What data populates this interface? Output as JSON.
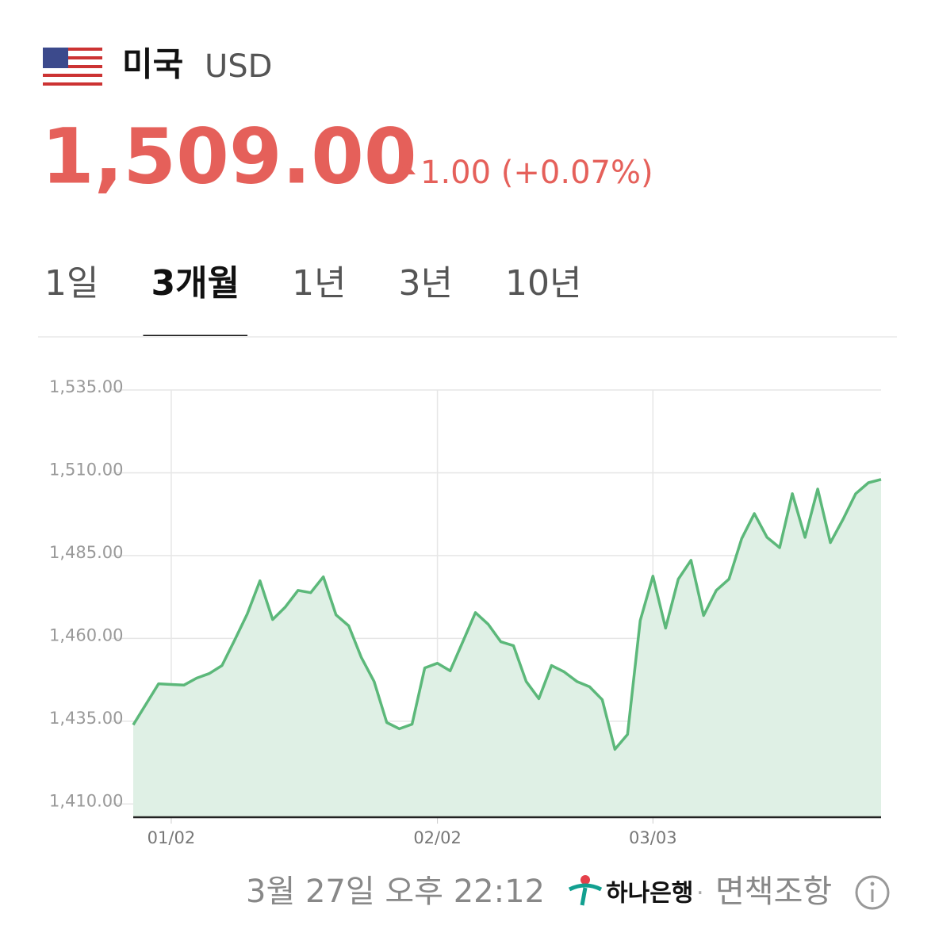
{
  "header": {
    "country": "미국",
    "currency": "USD"
  },
  "price": {
    "value": "1,509.00",
    "change": "1.00 (+0.07%)"
  },
  "tabs": [
    "1일",
    "3개월",
    "1년",
    "3년",
    "10년"
  ],
  "selected_tab": 1,
  "chart_data": {
    "type": "line",
    "color": "#5cb87a",
    "fill": "#dff0e5",
    "categories": [
      null,
      null,
      null,
      "01/02",
      null,
      null,
      null,
      null,
      null,
      null,
      null,
      null,
      null,
      null,
      null,
      null,
      null,
      null,
      null,
      null,
      null,
      null,
      null,
      null,
      "02/02",
      null,
      null,
      null,
      null,
      null,
      null,
      null,
      null,
      null,
      null,
      null,
      null,
      null,
      null,
      null,
      null,
      "03/03",
      null,
      null,
      null,
      null,
      null,
      null,
      null,
      null,
      null,
      null,
      null,
      null,
      null,
      null,
      null,
      null,
      null,
      null
    ],
    "values": [
      1433.9,
      1440.1,
      1446.3,
      1446.1,
      1445.9,
      1448.0,
      1449.4,
      1451.8,
      1459.5,
      1467.4,
      1477.4,
      1465.7,
      1469.5,
      1474.5,
      1473.8,
      1478.6,
      1467.1,
      1463.8,
      1454.2,
      1447.0,
      1434.6,
      1432.7,
      1434.1,
      1451.1,
      1452.5,
      1450.2,
      1459.0,
      1467.8,
      1464.3,
      1459.0,
      1457.8,
      1447.0,
      1441.8,
      1451.8,
      1449.9,
      1447.0,
      1445.4,
      1441.5,
      1426.5,
      1431.0,
      1465.4,
      1478.8,
      1463.1,
      1477.9,
      1483.6,
      1466.9,
      1474.5,
      1477.9,
      1490.1,
      1497.7,
      1490.5,
      1487.4,
      1503.7,
      1490.5,
      1505.1,
      1488.9,
      1496.0,
      1503.7,
      1507.0,
      1508.0
    ],
    "ylim": [
      1406,
      1535
    ],
    "yticks": [
      {
        "value": 1410,
        "label": "1,410.00"
      },
      {
        "value": 1435,
        "label": "1,435.00"
      },
      {
        "value": 1460,
        "label": "1,460.00"
      },
      {
        "value": 1485,
        "label": "1,485.00"
      },
      {
        "value": 1510,
        "label": "1,510.00"
      },
      {
        "value": 1535,
        "label": "1,535.00"
      }
    ],
    "grid": true
  },
  "footer": {
    "timestamp": "3월 27일 오후 22:12",
    "bank": "하나은행",
    "separator": "·",
    "disclaimer": "면책조항"
  }
}
